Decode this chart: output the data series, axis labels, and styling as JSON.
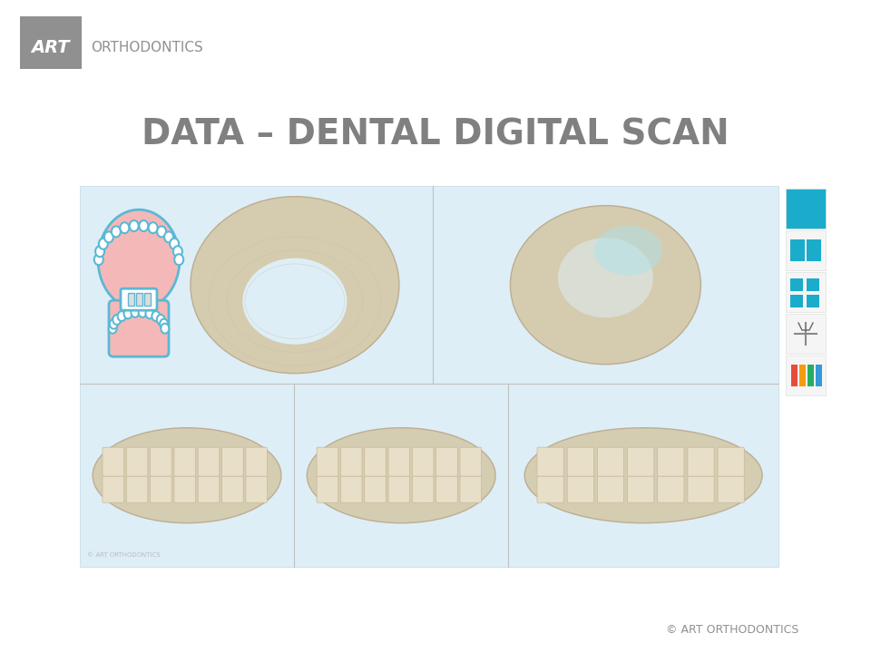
{
  "bg_color": "#ffffff",
  "title": "DATA – DENTAL DIGITAL SCAN",
  "title_color": "#808080",
  "title_fontsize": 28,
  "title_fontweight": "bold",
  "logo_box_color": "#909090",
  "logo_text_art": "ART",
  "logo_text_ortho": "ORTHODONTICS",
  "logo_text_color": "#ffffff",
  "logo_ortho_color": "#909090",
  "footer_text": "© ART ORTHODONTICS",
  "footer_color": "#909090",
  "panel_bg": "#deeef7",
  "panel_border": "#c0d8e8",
  "sidebar_teal": "#1aacca",
  "sidebar_bg": "#f0f0f0",
  "divider_color": "#c0c0c0",
  "tooth_tan": "#d4c9a8",
  "pink_mouth": "#f5b8b8",
  "tooth_outline": "#5bb8d4"
}
